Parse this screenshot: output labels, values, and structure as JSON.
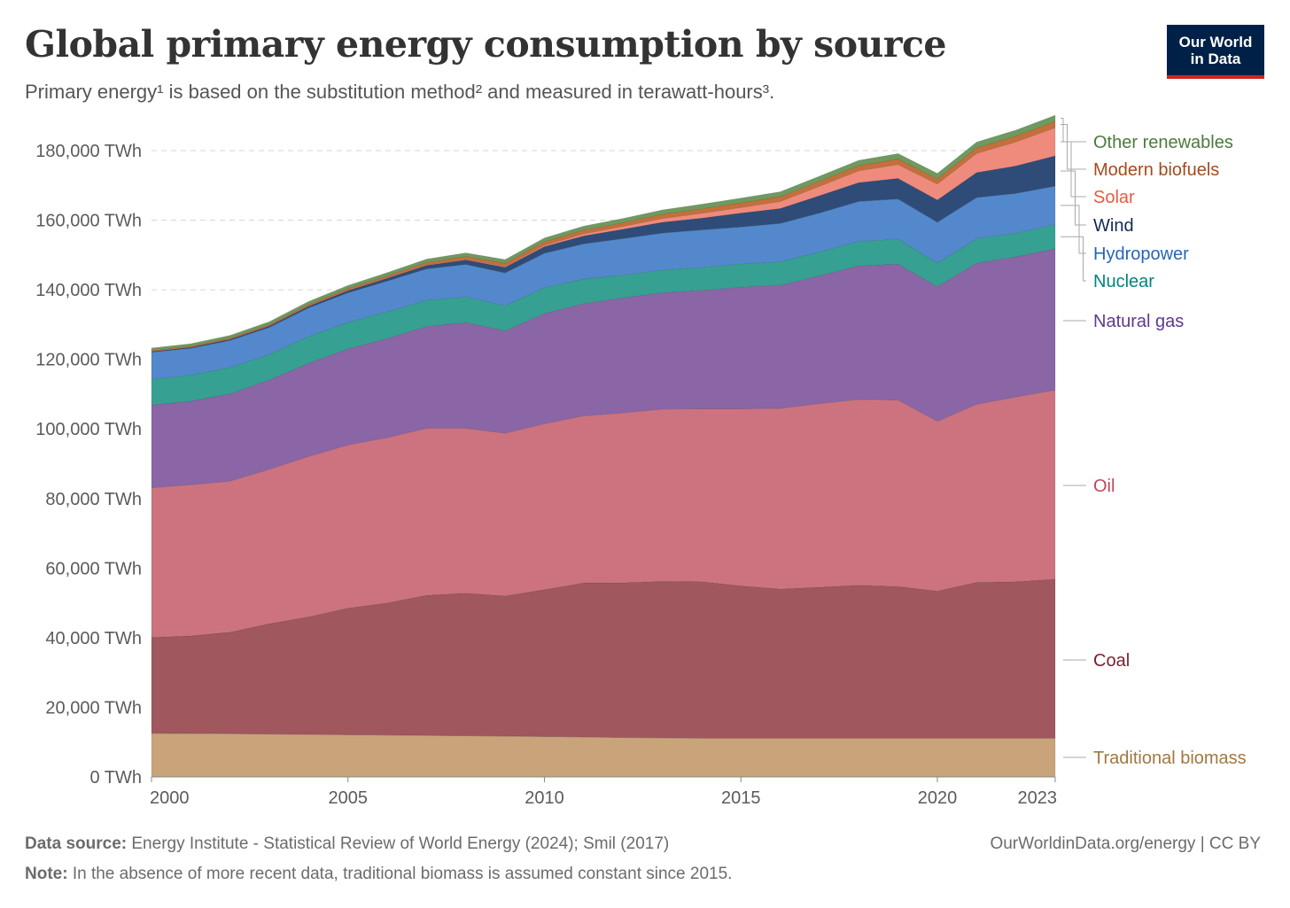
{
  "header": {
    "title": "Global primary energy consumption by source",
    "subtitle": "Primary energy¹ is based on the substitution method² and measured in terawatt-hours³."
  },
  "logo": {
    "line1": "Our World",
    "line2": "in Data"
  },
  "footer": {
    "source_label": "Data source:",
    "source_text": " Energy Institute - Statistical Review of World Energy (2024); Smil (2017)",
    "note_label": "Note:",
    "note_text": " In the absence of more recent data, traditional biomass is assumed constant since 2015.",
    "credit": "OurWorldinData.org/energy | CC BY"
  },
  "chart_data": {
    "type": "area",
    "stacked": true,
    "title": "Global primary energy consumption by source",
    "subtitle": "Primary energy¹ is based on the substitution method² and measured in terawatt-hours³.",
    "unit": "TWh",
    "x": [
      2000,
      2001,
      2002,
      2003,
      2004,
      2005,
      2006,
      2007,
      2008,
      2009,
      2010,
      2011,
      2012,
      2013,
      2014,
      2015,
      2016,
      2017,
      2018,
      2019,
      2020,
      2021,
      2022,
      2023
    ],
    "x_ticks": [
      2000,
      2005,
      2010,
      2015,
      2020,
      2023
    ],
    "y_ticks": [
      0,
      20000,
      40000,
      60000,
      80000,
      100000,
      120000,
      140000,
      160000,
      180000
    ],
    "y_tick_labels": [
      "0 TWh",
      "20,000 TWh",
      "40,000 TWh",
      "60,000 TWh",
      "80,000 TWh",
      "100,000 TWh",
      "120,000 TWh",
      "140,000 TWh",
      "160,000 TWh",
      "180,000 TWh"
    ],
    "ylim": [
      0,
      185000
    ],
    "grid": "horizontal dashed",
    "legend": "right, inline labels",
    "series": [
      {
        "name": "Traditional biomass",
        "color": "#c9a47a",
        "label_color": "#a2783e",
        "values": [
          12500,
          12450,
          12400,
          12300,
          12200,
          12100,
          12000,
          11900,
          11800,
          11700,
          11600,
          11450,
          11300,
          11200,
          11100,
          11100,
          11100,
          11100,
          11100,
          11100,
          11100,
          11100,
          11100,
          11100
        ]
      },
      {
        "name": "Coal",
        "color": "#a0575e",
        "label_color": "#7a1e2d",
        "values": [
          27600,
          28050,
          29200,
          31700,
          33800,
          36400,
          38000,
          40300,
          41000,
          40300,
          42200,
          44300,
          44500,
          45000,
          45000,
          43800,
          42900,
          43400,
          44000,
          43600,
          42300,
          44800,
          45000,
          45700
        ]
      },
      {
        "name": "Oil",
        "color": "#cd7380",
        "label_color": "#c2455b",
        "values": [
          43000,
          43500,
          43400,
          44400,
          46100,
          46900,
          47500,
          48000,
          47400,
          46800,
          47700,
          48000,
          48800,
          49500,
          49700,
          50900,
          51900,
          52800,
          53400,
          53600,
          48800,
          51200,
          53100,
          54400
        ]
      },
      {
        "name": "Natural gas",
        "color": "#8a66a6",
        "label_color": "#5e3a8c",
        "values": [
          23800,
          24000,
          25100,
          25700,
          26800,
          27600,
          28500,
          29300,
          30400,
          29400,
          31700,
          32300,
          33100,
          33500,
          34000,
          35000,
          35400,
          36700,
          38400,
          39100,
          38700,
          40600,
          40300,
          40600
        ]
      },
      {
        "name": "Nuclear",
        "color": "#36a192",
        "label_color": "#00847e",
        "values": [
          7350,
          7500,
          7550,
          7300,
          7700,
          7650,
          7700,
          7500,
          7350,
          7250,
          7400,
          7050,
          6500,
          6500,
          6600,
          6650,
          6750,
          6850,
          7000,
          7200,
          6800,
          7000,
          6800,
          6900
        ]
      },
      {
        "name": "Hydropower",
        "color": "#5389cc",
        "label_color": "#2765b8",
        "values": [
          7800,
          7700,
          7800,
          7800,
          8200,
          8500,
          8800,
          9000,
          9350,
          9400,
          9900,
          10100,
          10500,
          10600,
          10800,
          10600,
          11000,
          11200,
          11500,
          11500,
          11700,
          11800,
          11400,
          11100
        ]
      },
      {
        "name": "Wind",
        "color": "#2f4c78",
        "label_color": "#0f2a55",
        "values": [
          200,
          250,
          300,
          400,
          500,
          600,
          800,
          1000,
          1300,
          1600,
          1900,
          2300,
          2700,
          3100,
          3400,
          4000,
          4300,
          5000,
          5400,
          5900,
          6400,
          7200,
          7900,
          8700
        ]
      },
      {
        "name": "Solar",
        "color": "#ef8b7c",
        "label_color": "#e55b43",
        "values": [
          10,
          20,
          20,
          30,
          40,
          50,
          70,
          100,
          150,
          220,
          350,
          600,
          800,
          1100,
          1400,
          1600,
          2000,
          2700,
          3400,
          4000,
          4600,
          5500,
          6900,
          8100
        ]
      },
      {
        "name": "Modern biofuels",
        "color": "#c4703b",
        "label_color": "#a34b1e",
        "values": [
          300,
          320,
          380,
          400,
          450,
          550,
          650,
          750,
          850,
          950,
          1050,
          1050,
          1080,
          1200,
          1300,
          1350,
          1400,
          1450,
          1500,
          1600,
          1500,
          1600,
          1700,
          1800
        ]
      },
      {
        "name": "Other renewables",
        "color": "#6e9a60",
        "label_color": "#4c7a3c",
        "values": [
          700,
          700,
          750,
          800,
          850,
          900,
          920,
          950,
          1000,
          1050,
          1100,
          1150,
          1200,
          1250,
          1300,
          1350,
          1400,
          1450,
          1500,
          1550,
          1550,
          1650,
          1700,
          1750
        ]
      }
    ]
  }
}
